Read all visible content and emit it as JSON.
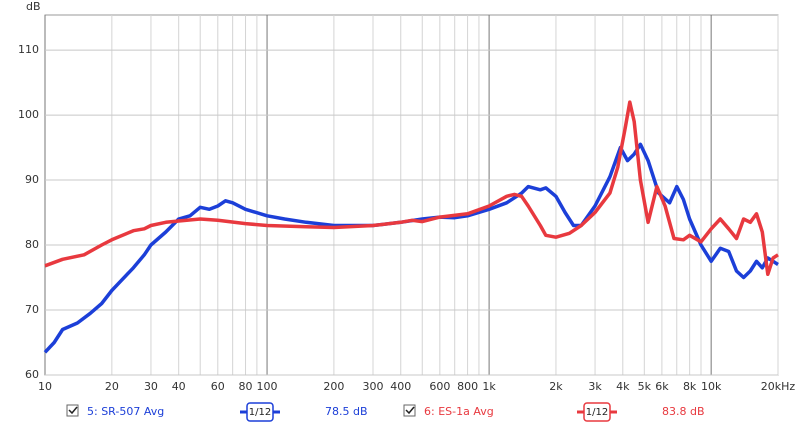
{
  "chart_data": {
    "type": "line",
    "y_label": "dB",
    "x_scale": "log",
    "grid": true,
    "xlim": [
      10,
      20000
    ],
    "ylim": [
      60,
      115.4
    ],
    "yticks": [
      60,
      70,
      80,
      90,
      100,
      110
    ],
    "xticks": [
      10,
      20,
      30,
      40,
      60,
      80,
      100,
      200,
      300,
      400,
      600,
      800,
      {
        "value": 1000,
        "label": "1k"
      },
      {
        "value": 2000,
        "label": "2k"
      },
      {
        "value": 3000,
        "label": "3k"
      },
      {
        "value": 4000,
        "label": "4k"
      },
      {
        "value": 5000,
        "label": "5k"
      },
      {
        "value": 6000,
        "label": "6k"
      },
      {
        "value": 8000,
        "label": "8k"
      },
      {
        "value": 10000,
        "label": "10k"
      },
      {
        "value": 20000,
        "label": "20kHz"
      }
    ],
    "x_minor_grid": [
      50,
      70,
      90,
      500,
      700,
      900,
      7000,
      9000
    ],
    "series": [
      {
        "name": "5: SR-507 Avg",
        "color": "#1c3fd8",
        "smoothing": "1/12",
        "level": "78.5 dB",
        "x": [
          10,
          11,
          12,
          14,
          16,
          18,
          20,
          22,
          25,
          28,
          30,
          35,
          40,
          45,
          50,
          55,
          60,
          65,
          70,
          80,
          100,
          120,
          150,
          200,
          300,
          400,
          500,
          600,
          700,
          800,
          1000,
          1200,
          1400,
          1500,
          1700,
          1800,
          2000,
          2200,
          2400,
          2600,
          3000,
          3500,
          3900,
          4200,
          4500,
          4800,
          5200,
          5800,
          6500,
          7000,
          7500,
          8000,
          9000,
          10000,
          11000,
          12000,
          13000,
          14000,
          15000,
          16000,
          17000,
          18000,
          19000,
          20000
        ],
        "values": [
          63.5,
          65,
          67,
          68,
          69.5,
          71,
          73,
          74.5,
          76.5,
          78.5,
          80,
          82,
          84,
          84.5,
          85.8,
          85.5,
          86,
          86.8,
          86.5,
          85.5,
          84.5,
          84,
          83.5,
          83,
          83,
          83.5,
          84,
          84.3,
          84.2,
          84.5,
          85.5,
          86.5,
          88,
          89,
          88.5,
          88.8,
          87.5,
          85,
          83,
          83,
          86,
          90.5,
          95,
          93,
          94,
          95.5,
          93,
          88,
          86.5,
          89,
          87,
          84,
          80,
          77.5,
          79.5,
          79,
          76,
          75,
          76,
          77.5,
          76.5,
          78,
          77.5,
          77
        ]
      },
      {
        "name": "6: ES-1a Avg",
        "color": "#e8393f",
        "smoothing": "1/12",
        "level": "83.8 dB",
        "x": [
          10,
          12,
          15,
          18,
          20,
          25,
          28,
          30,
          35,
          40,
          50,
          60,
          80,
          100,
          150,
          200,
          300,
          400,
          450,
          500,
          600,
          800,
          1000,
          1200,
          1300,
          1400,
          1500,
          1700,
          1800,
          2000,
          2300,
          2600,
          3000,
          3500,
          3800,
          4100,
          4300,
          4500,
          4800,
          5200,
          5700,
          6200,
          6800,
          7500,
          8000,
          9000,
          10000,
          11000,
          12000,
          13000,
          14000,
          15000,
          16000,
          17000,
          18000,
          19000,
          20000
        ],
        "values": [
          76.8,
          77.8,
          78.5,
          80,
          80.8,
          82.2,
          82.5,
          83,
          83.5,
          83.7,
          84,
          83.8,
          83.3,
          83,
          82.8,
          82.7,
          83,
          83.5,
          83.8,
          83.6,
          84.3,
          84.8,
          86,
          87.5,
          87.8,
          87.5,
          86,
          83,
          81.5,
          81.2,
          81.8,
          83,
          85,
          88,
          92,
          98,
          102,
          99,
          90,
          83.5,
          89,
          86,
          81,
          80.8,
          81.5,
          80.5,
          82.5,
          84,
          82.5,
          81,
          84,
          83.5,
          84.8,
          82,
          75.5,
          78,
          78.5
        ]
      }
    ]
  }
}
